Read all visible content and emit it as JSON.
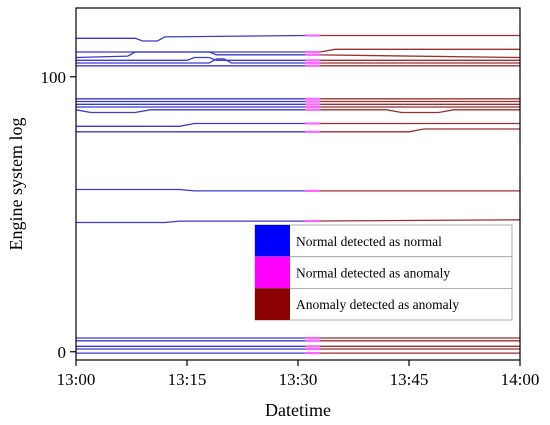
{
  "chart_data": {
    "type": "line",
    "title": "",
    "xlabel": "Datetime",
    "ylabel": "Engine system log",
    "x_ticks": [
      "13:00",
      "13:15",
      "13:30",
      "13:45",
      "14:00"
    ],
    "x_range": [
      "13:00",
      "14:00"
    ],
    "y_ticks": [
      0,
      100
    ],
    "ylim": [
      -3,
      125
    ],
    "grid": false,
    "legend_position": "lower-right",
    "legend": [
      {
        "label": "Normal detected as normal",
        "color": "#0000ff"
      },
      {
        "label": "Normal detected as anomaly",
        "color": "#ff00ff"
      },
      {
        "label": "Anomaly detected as anomaly",
        "color": "#8b0000"
      }
    ],
    "segments": {
      "normal_detected_normal": {
        "start": "13:00",
        "end": "13:31",
        "color": "#3b3bcc"
      },
      "normal_detected_anomaly": {
        "start": "13:31",
        "end": "13:33",
        "color": "#ff66ff"
      },
      "anomaly_detected_anomaly": {
        "start": "13:33",
        "end": "14:00",
        "color": "#9b2f2f"
      }
    },
    "series": [
      {
        "values": [
          [
            0,
            114
          ],
          [
            8,
            114
          ],
          [
            9,
            113
          ],
          [
            11,
            113
          ],
          [
            12,
            114.5
          ],
          [
            31,
            115
          ],
          [
            60,
            115
          ]
        ]
      },
      {
        "values": [
          [
            0,
            109
          ],
          [
            33,
            109
          ],
          [
            35,
            110
          ],
          [
            60,
            110
          ]
        ]
      },
      {
        "values": [
          [
            0,
            107
          ],
          [
            7,
            107.5
          ],
          [
            8,
            109
          ],
          [
            18,
            109
          ],
          [
            19,
            108
          ],
          [
            31,
            108
          ],
          [
            60,
            107
          ]
        ]
      },
      {
        "values": [
          [
            0,
            106
          ],
          [
            15,
            106
          ],
          [
            16,
            107
          ],
          [
            18,
            107
          ],
          [
            19,
            106
          ],
          [
            31,
            106
          ],
          [
            60,
            106
          ]
        ]
      },
      {
        "values": [
          [
            0,
            105
          ],
          [
            18,
            105
          ],
          [
            19,
            106.5
          ],
          [
            20,
            106.5
          ],
          [
            21,
            105
          ],
          [
            60,
            105
          ]
        ]
      },
      {
        "values": [
          [
            0,
            104
          ],
          [
            60,
            104
          ]
        ]
      },
      {
        "values": [
          [
            0,
            92
          ],
          [
            60,
            92
          ]
        ]
      },
      {
        "values": [
          [
            0,
            91
          ],
          [
            60,
            91
          ]
        ]
      },
      {
        "values": [
          [
            0,
            90
          ],
          [
            60,
            90
          ]
        ]
      },
      {
        "values": [
          [
            0,
            89
          ],
          [
            60,
            89
          ]
        ]
      },
      {
        "values": [
          [
            0,
            88
          ],
          [
            2,
            87
          ],
          [
            8,
            87
          ],
          [
            10,
            88
          ],
          [
            31,
            88
          ],
          [
            42,
            88
          ],
          [
            44,
            87
          ],
          [
            49,
            87
          ],
          [
            51,
            88
          ],
          [
            60,
            88
          ]
        ]
      },
      {
        "values": [
          [
            0,
            82
          ],
          [
            14,
            82
          ],
          [
            16,
            83
          ],
          [
            31,
            83
          ],
          [
            60,
            83
          ]
        ]
      },
      {
        "values": [
          [
            0,
            80
          ],
          [
            31,
            80
          ],
          [
            45,
            80
          ],
          [
            47,
            81
          ],
          [
            60,
            81
          ]
        ]
      },
      {
        "values": [
          [
            0,
            59
          ],
          [
            14,
            59
          ],
          [
            16,
            58.5
          ],
          [
            31,
            58.5
          ],
          [
            60,
            58.5
          ]
        ]
      },
      {
        "values": [
          [
            0,
            47
          ],
          [
            12,
            47
          ],
          [
            14,
            47.5
          ],
          [
            31,
            47.5
          ],
          [
            60,
            48
          ]
        ]
      },
      {
        "values": [
          [
            0,
            5
          ],
          [
            60,
            5
          ]
        ]
      },
      {
        "values": [
          [
            0,
            4
          ],
          [
            60,
            4
          ]
        ]
      },
      {
        "values": [
          [
            0,
            2
          ],
          [
            60,
            2
          ]
        ]
      },
      {
        "values": [
          [
            0,
            1
          ],
          [
            60,
            1
          ]
        ]
      },
      {
        "values": [
          [
            0,
            -0.5
          ],
          [
            60,
            -0.5
          ]
        ]
      }
    ]
  }
}
